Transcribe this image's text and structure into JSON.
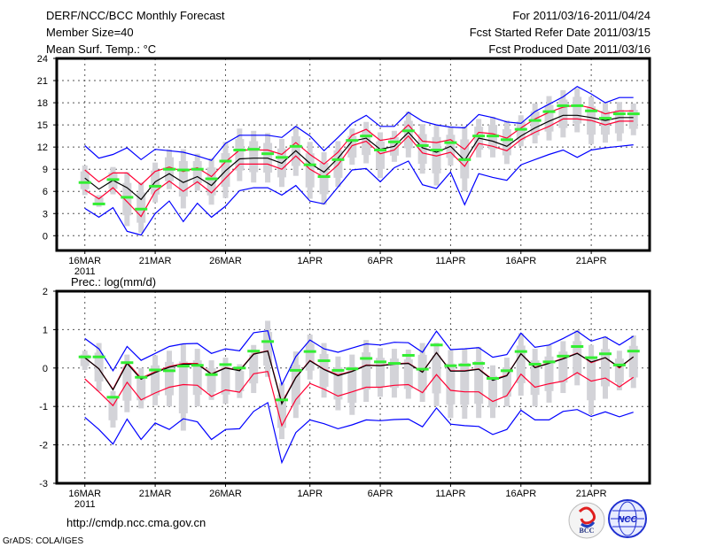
{
  "header": {
    "title": "DERF/NCC/BCC Monthly Forecast",
    "member_size": "Member Size=40",
    "variable": "Mean Surf. Temp.: °C",
    "period": "For 2011/03/16-2011/04/24",
    "started": "Fcst Started Refer Date 2011/03/15",
    "produced": "Fcst Produced Date 2011/03/16"
  },
  "footer": {
    "url": "http://cmdp.ncc.cma.gov.cn",
    "credit": "GrADS: COLA/IGES",
    "logo_bcc": "BCC",
    "logo_ncc": "NCC"
  },
  "colors": {
    "envelope": "#0000ff",
    "spread": "#ff0033",
    "mean": "#000000",
    "marker": "#33ee33",
    "box": "#d3d3d8"
  },
  "chart_data": [
    {
      "type": "line",
      "title": "Mean Surf. Temp.: °C",
      "x_ticks": [
        0,
        5,
        10,
        16,
        21,
        26,
        31,
        36
      ],
      "x_tick_labels": [
        "16MAR",
        "21MAR",
        "26MAR",
        "1APR",
        "6APR",
        "11APR",
        "16APR",
        "21APR"
      ],
      "x_year_label": "2011",
      "xlim": [
        -2,
        40.15
      ],
      "ylim": [
        -2,
        24
      ],
      "y_ticks": [
        0,
        3,
        6,
        9,
        12,
        15,
        18,
        21,
        24
      ],
      "grid": true,
      "box_low": [
        5.5,
        3.9,
        5.6,
        1.3,
        0.4,
        4.5,
        6.3,
        3.7,
        6.1,
        4.2,
        5.1,
        7.4,
        7.2,
        7.2,
        6.6,
        8.1,
        5.0,
        4.2,
        6.6,
        9.6,
        9.8,
        7.8,
        10.0,
        10.6,
        8.4,
        6.8,
        9.5,
        6.0,
        10.6,
        10.6,
        9.7,
        12.1,
        12.5,
        12.9,
        13.3,
        14.0,
        12.4,
        12.6,
        12.8,
        13.6
      ],
      "box_high": [
        9.5,
        5.5,
        9.3,
        8.6,
        7.2,
        9.9,
        11.7,
        11.7,
        11.1,
        10.5,
        12.7,
        14.5,
        14.2,
        13.9,
        13.1,
        14.8,
        12.7,
        11.3,
        12.8,
        14.5,
        15.4,
        14.0,
        14.2,
        16.8,
        15.1,
        15.0,
        14.7,
        14.8,
        15.8,
        16.1,
        15.6,
        16.3,
        17.9,
        18.9,
        19.7,
        20.0,
        18.8,
        18.0,
        18.1,
        17.9
      ],
      "series": [
        {
          "name": "max",
          "color": "#0000ff",
          "values": [
            12.2,
            10.5,
            11.0,
            11.9,
            10.3,
            11.7,
            11.5,
            11.3,
            10.8,
            10.2,
            12.5,
            13.6,
            13.6,
            13.6,
            13.3,
            14.8,
            13.5,
            11.5,
            13.3,
            15.2,
            16.3,
            14.8,
            14.8,
            16.7,
            15.5,
            15.0,
            14.7,
            14.6,
            16.4,
            16.0,
            15.4,
            15.2,
            16.8,
            17.8,
            18.8,
            20.2,
            19.2,
            18.0,
            18.7,
            18.7
          ]
        },
        {
          "name": "upper",
          "color": "#ff0033",
          "values": [
            8.9,
            7.3,
            8.5,
            8.5,
            6.9,
            8.7,
            9.3,
            8.7,
            9.2,
            8.0,
            10.0,
            11.6,
            11.6,
            11.6,
            11.0,
            12.6,
            11.0,
            9.7,
            11.3,
            13.6,
            14.4,
            12.9,
            13.2,
            15.0,
            12.8,
            12.6,
            13.0,
            11.7,
            14.0,
            13.8,
            13.2,
            14.6,
            15.8,
            16.7,
            17.4,
            17.7,
            17.3,
            16.5,
            16.9,
            16.9
          ]
        },
        {
          "name": "mean",
          "color": "#000000",
          "values": [
            7.8,
            6.3,
            7.5,
            6.5,
            4.9,
            7.3,
            8.4,
            7.2,
            8.0,
            6.8,
            8.8,
            10.4,
            10.5,
            10.5,
            9.8,
            11.5,
            9.8,
            8.6,
            10.5,
            12.8,
            13.2,
            11.7,
            12.1,
            14.0,
            11.9,
            11.3,
            12.1,
            10.2,
            13.2,
            12.8,
            12.1,
            13.5,
            14.6,
            15.5,
            16.3,
            16.3,
            16.0,
            15.6,
            16.0,
            16.0
          ]
        },
        {
          "name": "lower",
          "color": "#ff0033",
          "values": [
            6.2,
            5.0,
            6.5,
            4.6,
            2.6,
            6.0,
            7.4,
            6.0,
            7.3,
            5.8,
            7.8,
            9.7,
            9.7,
            9.7,
            9.0,
            10.8,
            9.0,
            7.9,
            9.6,
            12.2,
            12.8,
            11.1,
            11.6,
            13.5,
            11.2,
            10.8,
            11.3,
            9.4,
            12.5,
            12.1,
            11.5,
            13.0,
            14.0,
            14.8,
            15.8,
            15.8,
            15.6,
            15.0,
            15.5,
            15.5
          ]
        },
        {
          "name": "min",
          "color": "#0000ff",
          "values": [
            3.7,
            2.5,
            3.8,
            0.6,
            0.1,
            3.0,
            4.7,
            1.9,
            4.4,
            2.5,
            4.0,
            6.1,
            6.5,
            6.5,
            5.5,
            6.8,
            4.7,
            4.3,
            6.6,
            8.9,
            9.1,
            7.3,
            9.2,
            10.1,
            6.9,
            6.4,
            8.6,
            4.2,
            8.4,
            7.9,
            7.5,
            9.6,
            10.3,
            11.0,
            11.6,
            10.6,
            11.6,
            11.9,
            12.1,
            12.3
          ]
        }
      ],
      "markers": [
        7.2,
        4.3,
        7.6,
        5.2,
        3.6,
        6.7,
        9.0,
        8.9,
        9.0,
        7.7,
        10.1,
        11.6,
        11.7,
        11.1,
        10.6,
        12.1,
        9.6,
        8.0,
        10.3,
        12.9,
        13.5,
        11.6,
        12.7,
        14.2,
        12.2,
        11.6,
        12.6,
        10.3,
        13.5,
        13.5,
        13.0,
        14.4,
        15.6,
        16.8,
        17.6,
        17.6,
        16.9,
        15.9,
        16.5,
        16.5
      ]
    },
    {
      "type": "line",
      "title": "Prec.: log(mm/d)",
      "x_ticks": [
        0,
        5,
        10,
        16,
        21,
        26,
        31,
        36
      ],
      "x_tick_labels": [
        "16MAR",
        "21MAR",
        "26MAR",
        "1APR",
        "6APR",
        "11APR",
        "16APR",
        "21APR"
      ],
      "x_year_label": "2011",
      "xlim": [
        -2,
        40.15
      ],
      "ylim": [
        -3,
        2
      ],
      "y_ticks": [
        -3,
        -2,
        -1,
        0,
        1,
        2
      ],
      "grid": true,
      "box_low": [
        -0.05,
        -0.6,
        -1.55,
        -1.15,
        -1.05,
        -0.97,
        -1.0,
        -1.63,
        -1.0,
        -0.83,
        -0.93,
        -0.78,
        -0.65,
        -0.23,
        -1.85,
        -1.3,
        -0.3,
        -0.77,
        -1.1,
        -1.22,
        -0.88,
        -0.75,
        -0.77,
        -0.8,
        -0.88,
        -0.99,
        -1.3,
        -1.32,
        -1.3,
        -1.3,
        -1.0,
        -0.72,
        -1.0,
        -0.9,
        -0.65,
        -0.45,
        -1.2,
        -0.8,
        -0.58,
        -0.52
      ],
      "box_high": [
        0.45,
        0.65,
        -0.6,
        0.35,
        0.0,
        0.33,
        0.45,
        0.62,
        0.5,
        0.2,
        0.27,
        0.1,
        0.6,
        1.23,
        -0.4,
        0.43,
        0.87,
        0.65,
        0.3,
        0.35,
        0.73,
        0.52,
        0.5,
        0.48,
        0.65,
        0.66,
        0.47,
        0.5,
        0.55,
        0.07,
        0.27,
        0.91,
        0.5,
        0.6,
        0.7,
        0.99,
        0.6,
        0.82,
        0.45,
        0.85
      ],
      "series": [
        {
          "name": "max",
          "color": "#0000ff",
          "values": [
            0.77,
            0.5,
            -0.07,
            0.56,
            0.2,
            0.38,
            0.56,
            0.63,
            0.64,
            0.38,
            0.5,
            0.45,
            0.92,
            0.97,
            -0.43,
            0.3,
            0.73,
            0.5,
            0.41,
            0.52,
            0.63,
            0.6,
            0.67,
            0.66,
            0.41,
            0.96,
            0.48,
            0.5,
            0.53,
            0.28,
            0.35,
            0.91,
            0.54,
            0.6,
            0.77,
            0.96,
            0.7,
            0.81,
            0.6,
            0.83
          ]
        },
        {
          "name": "upper",
          "color": "#ff0033",
          "values": [
            0.27,
            -0.02,
            -0.55,
            0.15,
            -0.26,
            -0.1,
            0.04,
            0.12,
            0.12,
            -0.15,
            0.01,
            -0.06,
            0.37,
            0.45,
            -0.9,
            -0.24,
            0.2,
            -0.03,
            -0.18,
            -0.08,
            0.08,
            0.07,
            0.11,
            0.13,
            -0.1,
            0.4,
            -0.07,
            -0.07,
            -0.02,
            -0.3,
            -0.19,
            0.37,
            0.02,
            0.13,
            0.25,
            0.39,
            0.14,
            0.27,
            0.0,
            0.29
          ]
        },
        {
          "name": "mean",
          "color": "#000000",
          "values": [
            0.27,
            -0.02,
            -0.57,
            0.12,
            -0.29,
            -0.12,
            0.02,
            0.1,
            0.1,
            -0.16,
            0.0,
            -0.07,
            0.36,
            0.44,
            -0.93,
            -0.25,
            0.19,
            -0.04,
            -0.2,
            -0.09,
            0.07,
            0.06,
            0.1,
            0.12,
            -0.11,
            0.4,
            -0.08,
            -0.08,
            -0.03,
            -0.32,
            -0.2,
            0.37,
            0.01,
            0.12,
            0.24,
            0.38,
            0.16,
            0.27,
            0.02,
            0.29
          ]
        },
        {
          "name": "lower",
          "color": "#ff0033",
          "values": [
            -0.28,
            -0.62,
            -0.98,
            -0.37,
            -0.83,
            -0.65,
            -0.5,
            -0.43,
            -0.45,
            -0.74,
            -0.57,
            -0.63,
            -0.15,
            -0.09,
            -1.5,
            -0.82,
            -0.4,
            -0.55,
            -0.73,
            -0.62,
            -0.5,
            -0.5,
            -0.45,
            -0.43,
            -0.64,
            -0.17,
            -0.58,
            -0.62,
            -0.62,
            -0.87,
            -0.72,
            -0.16,
            -0.5,
            -0.41,
            -0.34,
            -0.12,
            -0.34,
            -0.26,
            -0.49,
            -0.24
          ]
        },
        {
          "name": "min",
          "color": "#0000ff",
          "values": [
            -1.28,
            -1.6,
            -1.98,
            -1.33,
            -1.86,
            -1.43,
            -1.6,
            -1.32,
            -1.4,
            -1.86,
            -1.6,
            -1.58,
            -1.13,
            -0.9,
            -2.46,
            -1.68,
            -1.35,
            -1.45,
            -1.58,
            -1.48,
            -1.35,
            -1.37,
            -1.34,
            -1.33,
            -1.53,
            -1.04,
            -1.46,
            -1.5,
            -1.52,
            -1.73,
            -1.6,
            -1.1,
            -1.35,
            -1.35,
            -1.13,
            -1.08,
            -1.26,
            -1.14,
            -1.27,
            -1.15
          ]
        }
      ],
      "markers": [
        0.29,
        0.29,
        -0.76,
        0.14,
        -0.24,
        -0.05,
        -0.07,
        0.05,
        0.07,
        -0.17,
        0.09,
        0.0,
        0.44,
        0.69,
        -0.83,
        -0.06,
        0.43,
        0.19,
        -0.06,
        -0.02,
        0.25,
        0.16,
        0.12,
        0.33,
        -0.03,
        0.6,
        0.06,
        0.08,
        0.12,
        -0.27,
        -0.07,
        0.43,
        0.1,
        0.16,
        0.31,
        0.56,
        0.27,
        0.37,
        0.08,
        0.44
      ]
    }
  ]
}
